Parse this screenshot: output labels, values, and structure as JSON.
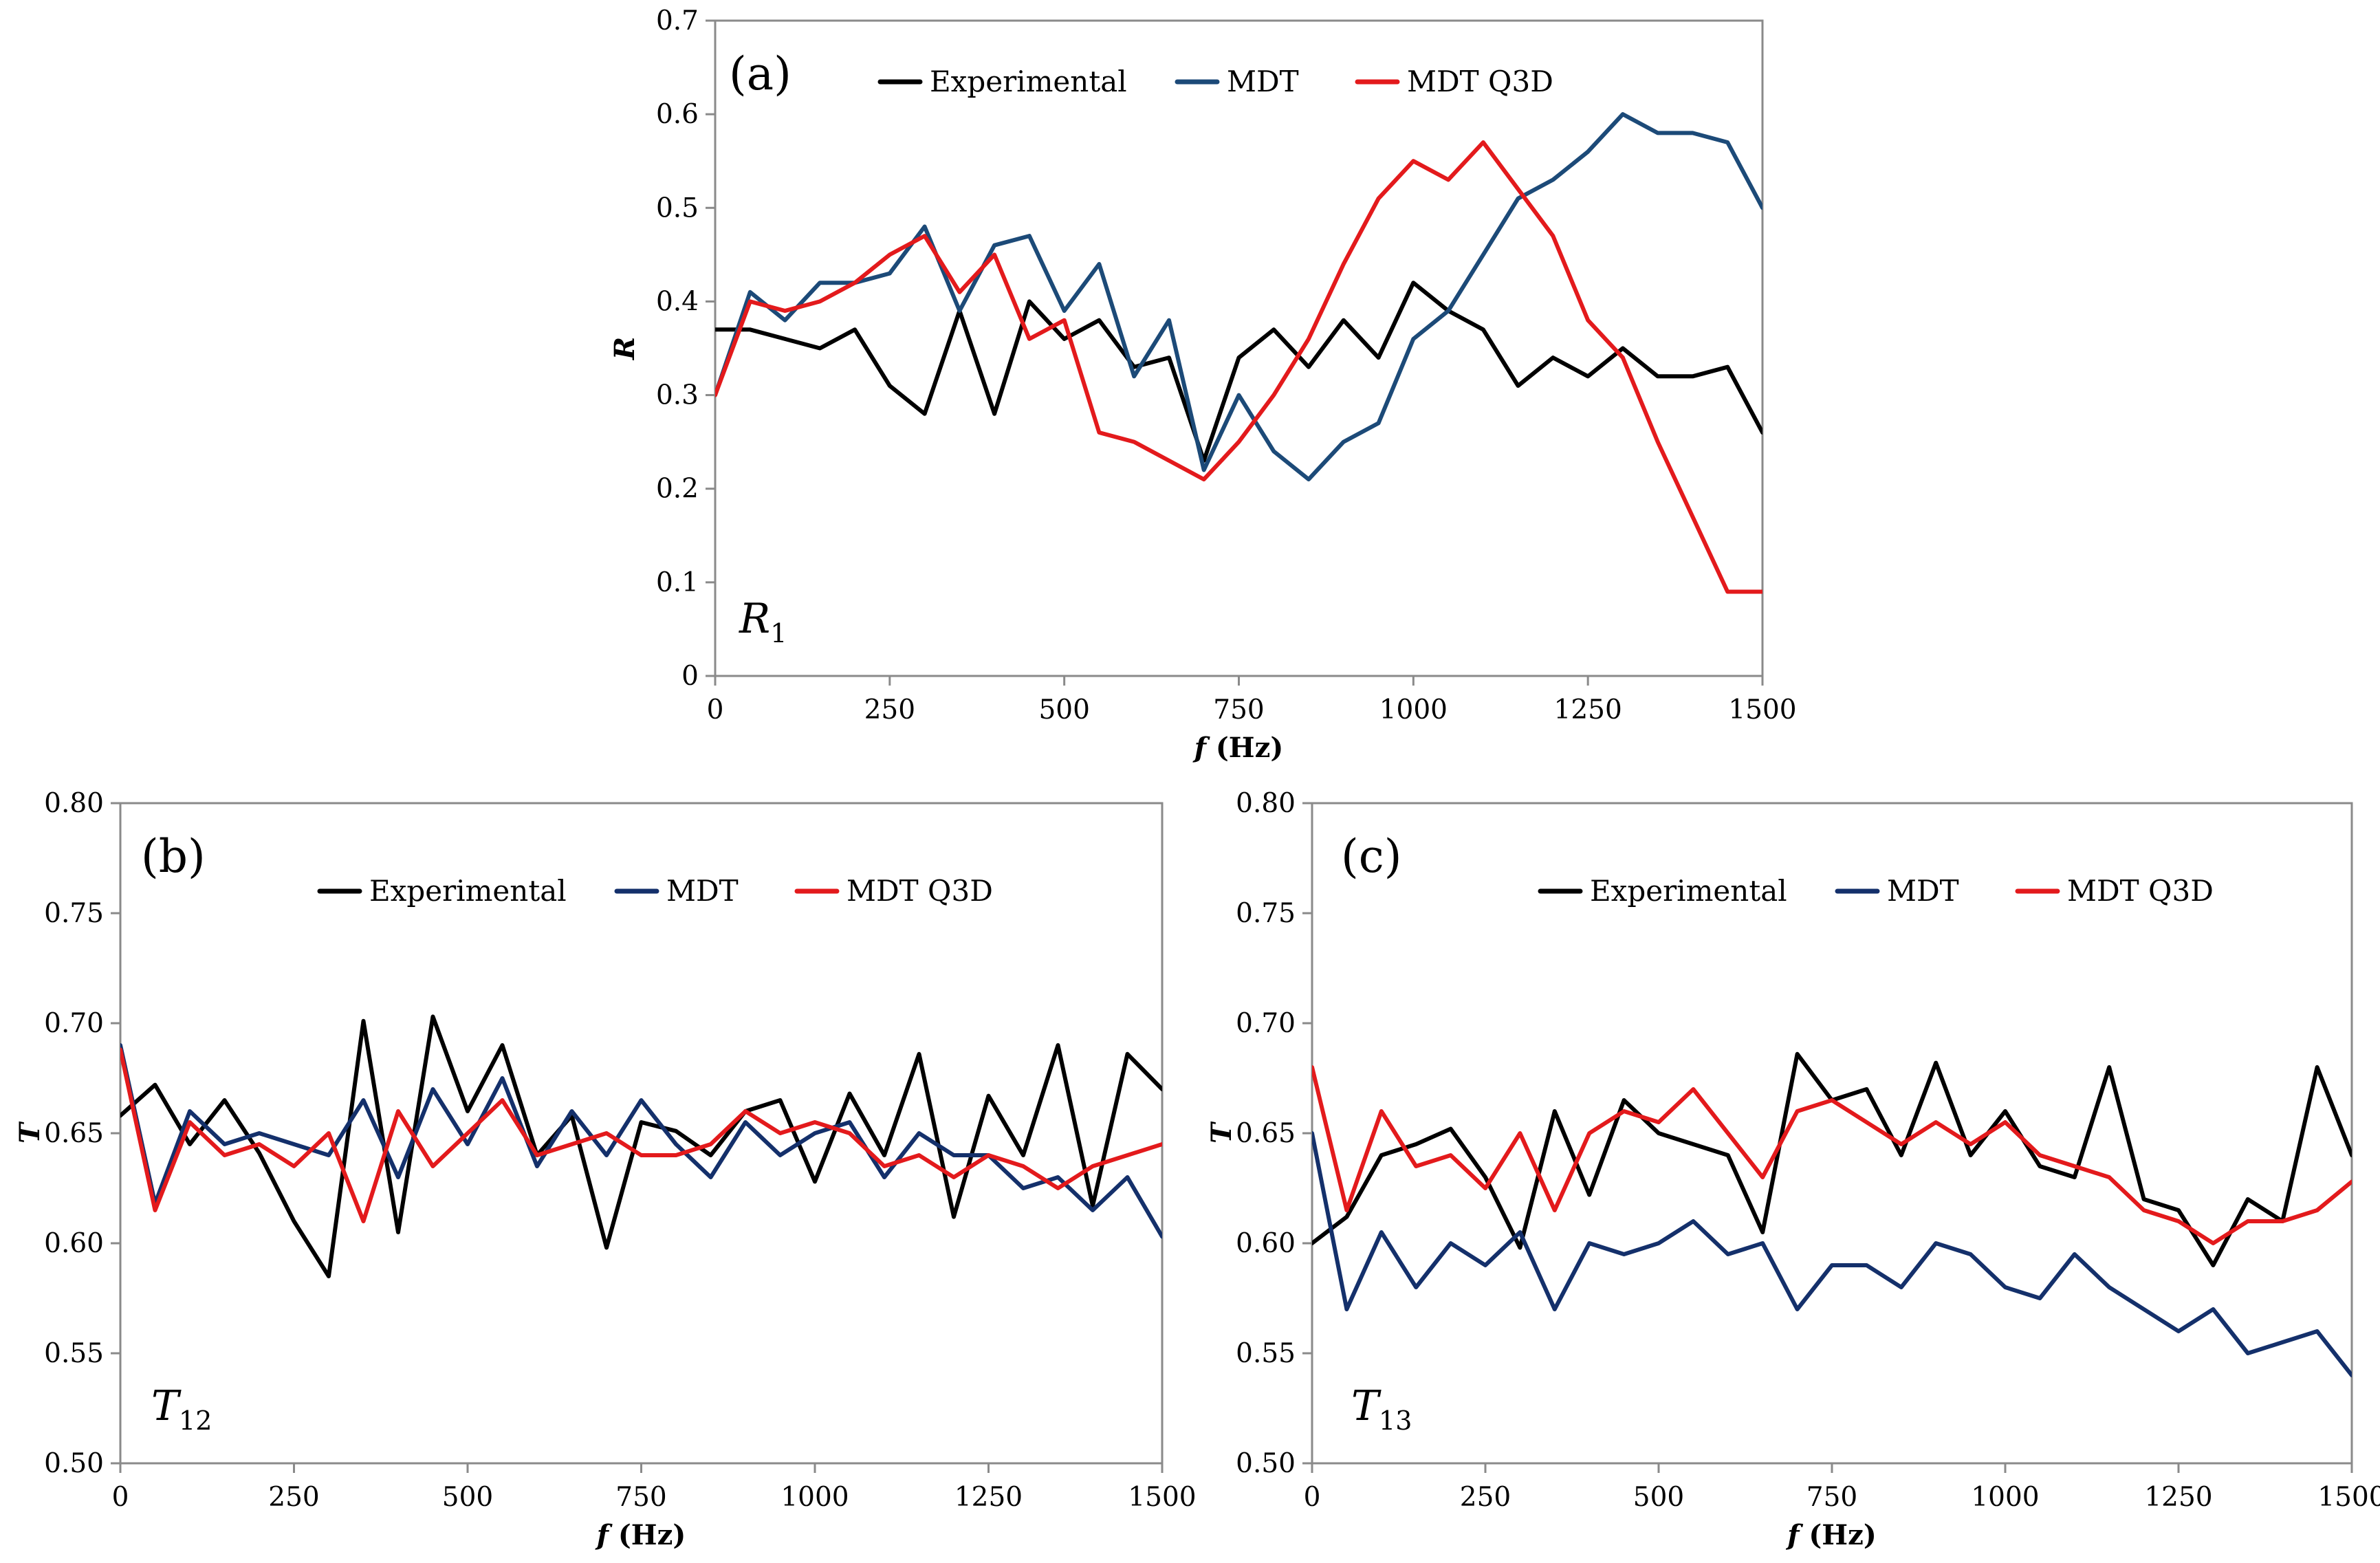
{
  "chart_data": [
    {
      "type": "line",
      "panel_label": "(a)",
      "quantity_label": {
        "main": "R",
        "sub": "1"
      },
      "xlabel": {
        "main": "f",
        "unit": " (Hz)"
      },
      "ylabel": "R",
      "xlim": [
        0,
        1500
      ],
      "ylim": [
        0,
        0.7
      ],
      "xticks": [
        "0",
        "250",
        "500",
        "750",
        "1000",
        "1250",
        "1500"
      ],
      "yticks": [
        "0",
        "0.1",
        "0.2",
        "0.3",
        "0.4",
        "0.5",
        "0.6",
        "0.7"
      ],
      "legend": "top-center",
      "x": [
        0,
        50,
        100,
        150,
        200,
        250,
        300,
        350,
        400,
        450,
        500,
        550,
        600,
        650,
        700,
        750,
        800,
        850,
        900,
        950,
        1000,
        1050,
        1100,
        1150,
        1200,
        1250,
        1300,
        1350,
        1400,
        1450,
        1500
      ],
      "series": [
        {
          "name": "Experimental",
          "color": "#000000",
          "values": [
            0.37,
            0.37,
            0.36,
            0.35,
            0.37,
            0.31,
            0.28,
            0.39,
            0.28,
            0.4,
            0.36,
            0.38,
            0.33,
            0.34,
            0.23,
            0.34,
            0.37,
            0.33,
            0.38,
            0.34,
            0.42,
            0.39,
            0.37,
            0.31,
            0.34,
            0.32,
            0.35,
            0.32,
            0.32,
            0.33,
            0.26
          ]
        },
        {
          "name": "MDT",
          "color": "#1c4a78",
          "values": [
            0.3,
            0.41,
            0.38,
            0.42,
            0.42,
            0.43,
            0.48,
            0.39,
            0.46,
            0.47,
            0.39,
            0.44,
            0.32,
            0.38,
            0.22,
            0.3,
            0.24,
            0.21,
            0.25,
            0.27,
            0.36,
            0.39,
            0.45,
            0.51,
            0.53,
            0.56,
            0.6,
            0.58,
            0.58,
            0.57,
            0.5
          ]
        },
        {
          "name": "MDT Q3D",
          "color": "#e31a1c",
          "values": [
            0.3,
            0.4,
            0.39,
            0.4,
            0.42,
            0.45,
            0.47,
            0.41,
            0.45,
            0.36,
            0.38,
            0.26,
            0.25,
            0.23,
            0.21,
            0.25,
            0.3,
            0.36,
            0.44,
            0.51,
            0.55,
            0.53,
            0.57,
            0.52,
            0.47,
            0.38,
            0.34,
            0.25,
            0.17,
            0.09,
            0.09
          ]
        }
      ]
    },
    {
      "type": "line",
      "panel_label": "(b)",
      "quantity_label": {
        "main": "T",
        "sub": "12"
      },
      "xlabel": {
        "main": "f",
        "unit": " (Hz)"
      },
      "ylabel": "T",
      "xlim": [
        0,
        1500
      ],
      "ylim": [
        0.5,
        0.8
      ],
      "xticks": [
        "0",
        "250",
        "500",
        "750",
        "1000",
        "1250",
        "1500"
      ],
      "yticks": [
        "0.50",
        "0.55",
        "0.60",
        "0.65",
        "0.70",
        "0.75",
        "0.80"
      ],
      "legend": "top-center",
      "x": [
        0,
        50,
        100,
        150,
        200,
        250,
        300,
        350,
        400,
        450,
        500,
        550,
        600,
        650,
        700,
        750,
        800,
        850,
        900,
        950,
        1000,
        1050,
        1100,
        1150,
        1200,
        1250,
        1300,
        1350,
        1400,
        1450,
        1500
      ],
      "series": [
        {
          "name": "Experimental",
          "color": "#000000",
          "values": [
            0.658,
            0.672,
            0.645,
            0.665,
            0.641,
            0.61,
            0.585,
            0.701,
            0.605,
            0.703,
            0.66,
            0.69,
            0.64,
            0.658,
            0.598,
            0.655,
            0.651,
            0.64,
            0.66,
            0.665,
            0.628,
            0.668,
            0.64,
            0.686,
            0.612,
            0.667,
            0.64,
            0.69,
            0.617,
            0.686,
            0.67
          ]
        },
        {
          "name": "MDT",
          "color": "#14306b",
          "values": [
            0.69,
            0.618,
            0.66,
            0.645,
            0.65,
            0.645,
            0.64,
            0.665,
            0.63,
            0.67,
            0.645,
            0.675,
            0.635,
            0.66,
            0.64,
            0.665,
            0.645,
            0.63,
            0.655,
            0.64,
            0.65,
            0.655,
            0.63,
            0.65,
            0.64,
            0.64,
            0.625,
            0.63,
            0.615,
            0.63,
            0.603
          ]
        },
        {
          "name": "MDT Q3D",
          "color": "#e31a1c",
          "values": [
            0.688,
            0.615,
            0.655,
            0.64,
            0.645,
            0.635,
            0.65,
            0.61,
            0.66,
            0.635,
            0.65,
            0.665,
            0.64,
            0.645,
            0.65,
            0.64,
            0.64,
            0.645,
            0.66,
            0.65,
            0.655,
            0.65,
            0.635,
            0.64,
            0.63,
            0.64,
            0.635,
            0.625,
            0.635,
            0.64,
            0.645
          ]
        }
      ]
    },
    {
      "type": "line",
      "panel_label": "(c)",
      "quantity_label": {
        "main": "T",
        "sub": "13"
      },
      "xlabel": {
        "main": "f",
        "unit": " (Hz)"
      },
      "ylabel": "T",
      "xlim": [
        0,
        1500
      ],
      "ylim": [
        0.5,
        0.8
      ],
      "xticks": [
        "0",
        "250",
        "500",
        "750",
        "1000",
        "1250",
        "1500"
      ],
      "yticks": [
        "0.50",
        "0.55",
        "0.60",
        "0.65",
        "0.70",
        "0.75",
        "0.80"
      ],
      "legend": "top-center",
      "x": [
        0,
        50,
        100,
        150,
        200,
        250,
        300,
        350,
        400,
        450,
        500,
        550,
        600,
        650,
        700,
        750,
        800,
        850,
        900,
        950,
        1000,
        1050,
        1100,
        1150,
        1200,
        1250,
        1300,
        1350,
        1400,
        1450,
        1500
      ],
      "series": [
        {
          "name": "Experimental",
          "color": "#000000",
          "values": [
            0.6,
            0.612,
            0.64,
            0.645,
            0.652,
            0.63,
            0.598,
            0.66,
            0.622,
            0.665,
            0.65,
            0.645,
            0.64,
            0.605,
            0.686,
            0.665,
            0.67,
            0.64,
            0.682,
            0.64,
            0.66,
            0.635,
            0.63,
            0.68,
            0.62,
            0.615,
            0.59,
            0.62,
            0.61,
            0.68,
            0.64
          ]
        },
        {
          "name": "MDT",
          "color": "#14306b",
          "values": [
            0.65,
            0.57,
            0.605,
            0.58,
            0.6,
            0.59,
            0.605,
            0.57,
            0.6,
            0.595,
            0.6,
            0.61,
            0.595,
            0.6,
            0.57,
            0.59,
            0.59,
            0.58,
            0.6,
            0.595,
            0.58,
            0.575,
            0.595,
            0.58,
            0.57,
            0.56,
            0.57,
            0.55,
            0.555,
            0.56,
            0.54
          ]
        },
        {
          "name": "MDT Q3D",
          "color": "#e31a1c",
          "values": [
            0.68,
            0.615,
            0.66,
            0.635,
            0.64,
            0.625,
            0.65,
            0.615,
            0.65,
            0.66,
            0.655,
            0.67,
            0.65,
            0.63,
            0.66,
            0.665,
            0.655,
            0.645,
            0.655,
            0.645,
            0.655,
            0.64,
            0.635,
            0.63,
            0.615,
            0.61,
            0.6,
            0.61,
            0.61,
            0.615,
            0.628
          ]
        }
      ]
    }
  ]
}
